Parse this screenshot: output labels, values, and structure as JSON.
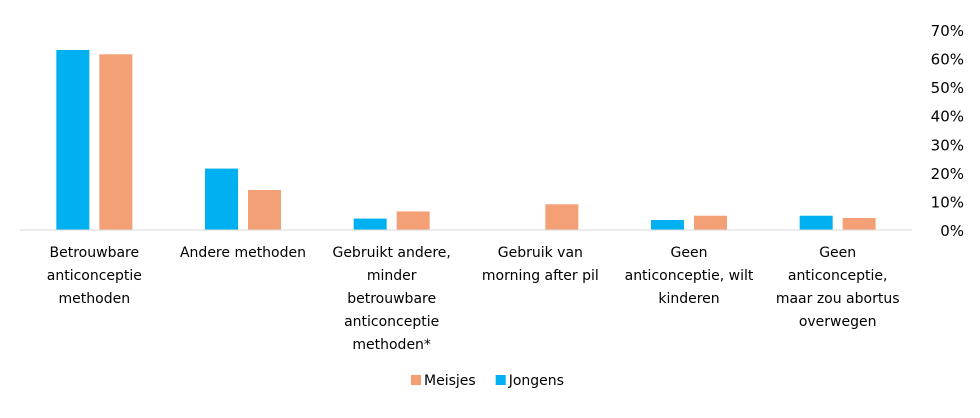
{
  "chart_data": {
    "type": "bar",
    "categories": [
      [
        "Betrouwbare",
        "anticonceptie",
        "methoden"
      ],
      [
        "Andere methoden"
      ],
      [
        "Gebruikt andere,",
        "minder",
        "betrouwbare",
        "anticonceptie",
        "methoden*"
      ],
      [
        "Gebruik van",
        "morning after pil"
      ],
      [
        "Geen",
        "anticonceptie, wilt",
        "kinderen"
      ],
      [
        "Geen",
        "anticonceptie,",
        "maar zou abortus",
        "overwegen"
      ]
    ],
    "series": [
      {
        "name": "Jongens",
        "color": "#00b0f0",
        "values": [
          63,
          21.5,
          4,
          0,
          3.5,
          5
        ]
      },
      {
        "name": "Meisjes",
        "color": "#f4a077",
        "values": [
          61.5,
          14,
          6.5,
          9,
          5,
          4.2
        ]
      }
    ],
    "legend_order": [
      "Meisjes",
      "Jongens"
    ],
    "y_ticks": [
      "0%",
      "10%",
      "20%",
      "30%",
      "40%",
      "50%",
      "60%",
      "70%"
    ],
    "ylim": [
      0,
      70
    ],
    "y_axis_side": "right",
    "grid": false,
    "legend_position": "bottom"
  }
}
